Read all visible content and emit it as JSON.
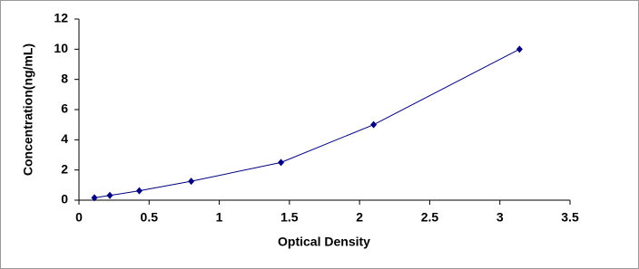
{
  "chart_data": {
    "type": "scatter-line",
    "x_label": "Optical Density",
    "y_label": "Concentration(ng/mL)",
    "x": [
      0.11,
      0.22,
      0.43,
      0.8,
      1.44,
      2.1,
      3.14
    ],
    "values": [
      0.156,
      0.312,
      0.625,
      1.25,
      2.5,
      5,
      10
    ],
    "color": "#000080",
    "xlim": [
      0,
      3.5
    ],
    "xticks": [
      0,
      0.5,
      1,
      1.5,
      2,
      2.5,
      3,
      3.5
    ],
    "ylim": [
      0,
      12
    ],
    "yticks": [
      0,
      2,
      4,
      6,
      8,
      10,
      12
    ],
    "grid": false
  }
}
